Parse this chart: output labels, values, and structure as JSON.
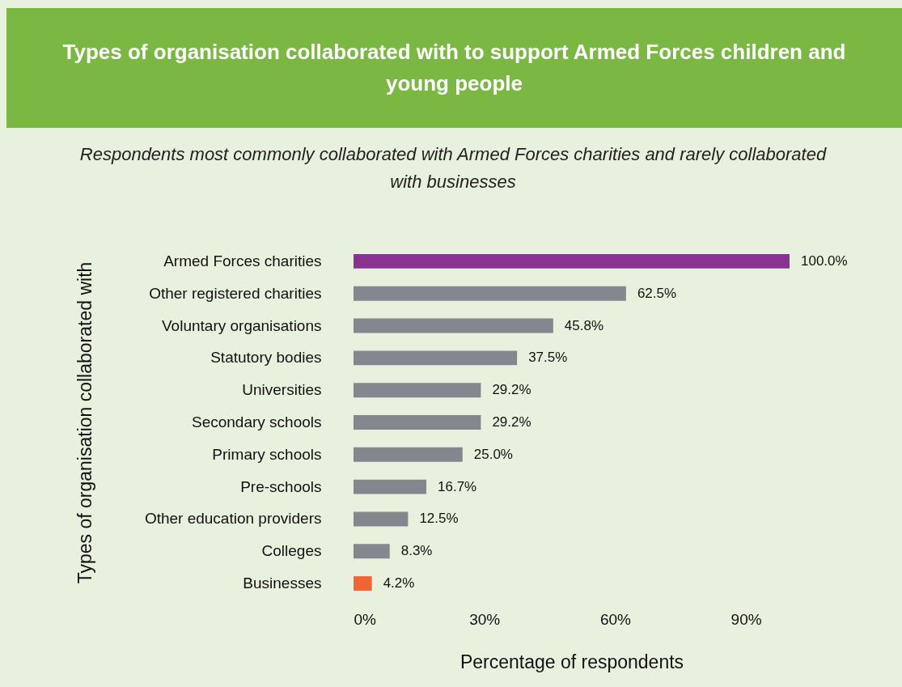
{
  "chart_data": {
    "type": "bar",
    "orientation": "horizontal",
    "title": "Types of organisation collaborated with to support Armed Forces children and young people",
    "subtitle": "Respondents most commonly collaborated with Armed Forces charities and rarely collaborated with businesses",
    "xlabel": "Percentage of respondents",
    "ylabel": "Types of organisation collaborated with",
    "categories": [
      "Armed Forces charities",
      "Other registered charities",
      "Voluntary organisations",
      "Statutory bodies",
      "Universities",
      "Secondary schools",
      "Primary schools",
      "Pre-schools",
      "Other education providers",
      "Colleges",
      "Businesses"
    ],
    "values": [
      100.0,
      62.5,
      45.8,
      37.5,
      29.2,
      29.2,
      25.0,
      16.7,
      12.5,
      8.3,
      4.2
    ],
    "value_labels": [
      "100.0%",
      "62.5%",
      "45.8%",
      "37.5%",
      "29.2%",
      "29.2%",
      "25.0%",
      "16.7%",
      "12.5%",
      "8.3%",
      "4.2%"
    ],
    "colors": [
      "#8a3291",
      "#84878e",
      "#84878e",
      "#84878e",
      "#84878e",
      "#84878e",
      "#84878e",
      "#84878e",
      "#84878e",
      "#84878e",
      "#f26532"
    ],
    "xlim": [
      0,
      100
    ],
    "xticks": [
      {
        "value": 0,
        "label": "0%"
      },
      {
        "value": 30,
        "label": "30%"
      },
      {
        "value": 60,
        "label": "60%"
      },
      {
        "value": 90,
        "label": "90%"
      }
    ],
    "grid": false
  }
}
